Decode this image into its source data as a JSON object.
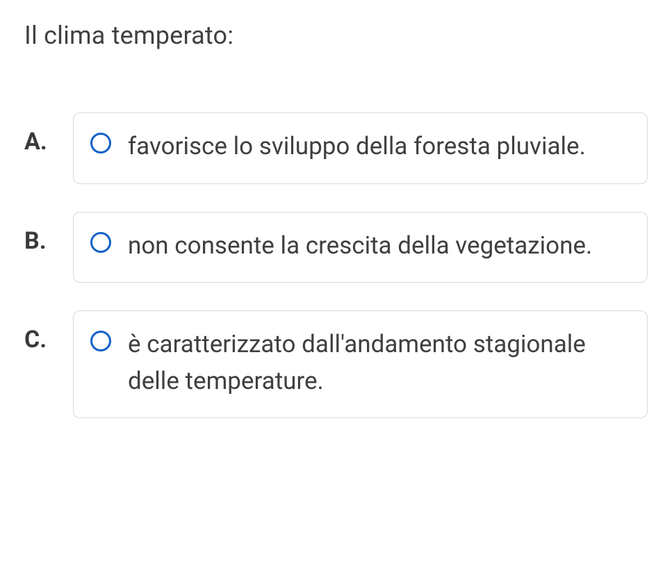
{
  "question": "Il clima temperato:",
  "options": [
    {
      "letter": "A.",
      "text": "favorisce lo sviluppo della foresta pluviale."
    },
    {
      "letter": "B.",
      "text": "non consente la crescita della vegetazione."
    },
    {
      "letter": "C.",
      "text": "è caratterizzato dall'andamento stagionale delle temperature."
    }
  ],
  "styling": {
    "page_background": "#ffffff",
    "text_color": "#3a3a3a",
    "question_fontsize": 36,
    "question_fontweight": 400,
    "option_letter_fontsize": 34,
    "option_letter_fontweight": 700,
    "option_text_fontsize": 35,
    "option_box_border_color": "#d9d9d9",
    "option_box_border_radius": 10,
    "radio_border_color": "#1160c9",
    "radio_border_width": 3.5,
    "radio_diameter": 30
  }
}
